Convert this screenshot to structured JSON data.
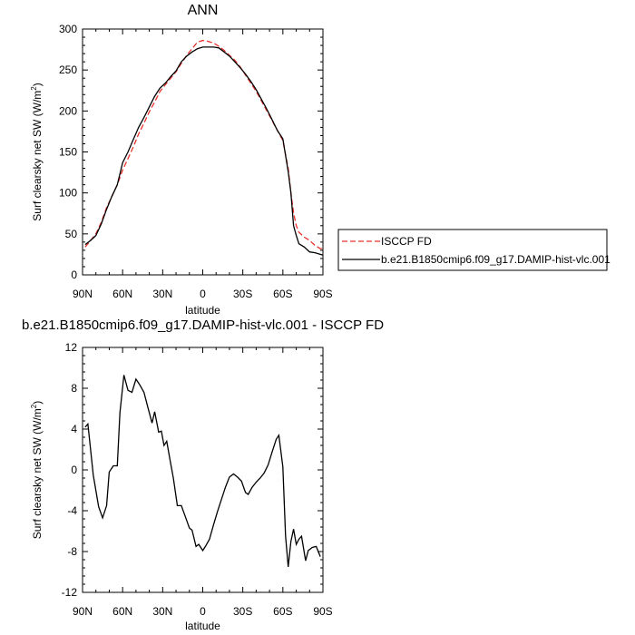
{
  "chart_data": [
    {
      "type": "line",
      "title": "ANN",
      "xlabel": "latitude",
      "ylabel": "Surf clearsky net SW (W/m",
      "ylabel_sup": "2",
      "ylabel_end": ")",
      "xlim": [
        90,
        -90
      ],
      "ylim": [
        0,
        300
      ],
      "x_ticks": [
        90,
        60,
        30,
        0,
        -30,
        -60,
        -90
      ],
      "x_tick_labels": [
        "90N",
        "60N",
        "30N",
        "0",
        "30S",
        "60S",
        "90S"
      ],
      "y_ticks": [
        0,
        50,
        100,
        150,
        200,
        250,
        300
      ],
      "y_tick_labels": [
        "0",
        "50",
        "100",
        "150",
        "200",
        "250",
        "300"
      ],
      "legend_position": "right",
      "series": [
        {
          "name": "ISCCP FD",
          "color": "#e8322b",
          "dash": "dashed",
          "points": [
            [
              88,
              34
            ],
            [
              84,
              42
            ],
            [
              80,
              50
            ],
            [
              76,
              64
            ],
            [
              72,
              82
            ],
            [
              68,
              96
            ],
            [
              64,
              110
            ],
            [
              60,
              128
            ],
            [
              56,
              142
            ],
            [
              52,
              156
            ],
            [
              48,
              172
            ],
            [
              44,
              185
            ],
            [
              40,
              199
            ],
            [
              36,
              211
            ],
            [
              32,
              224
            ],
            [
              28,
              232
            ],
            [
              24,
              240
            ],
            [
              20,
              248
            ],
            [
              16,
              258
            ],
            [
              12,
              268
            ],
            [
              8,
              276
            ],
            [
              4,
              284
            ],
            [
              0,
              286
            ],
            [
              -4,
              285
            ],
            [
              -8,
              283
            ],
            [
              -12,
              279
            ],
            [
              -16,
              274
            ],
            [
              -20,
              268
            ],
            [
              -24,
              262
            ],
            [
              -28,
              254
            ],
            [
              -32,
              244
            ],
            [
              -36,
              234
            ],
            [
              -40,
              224
            ],
            [
              -44,
              212
            ],
            [
              -48,
              200
            ],
            [
              -52,
              188
            ],
            [
              -56,
              176
            ],
            [
              -60,
              164
            ],
            [
              -64,
              130
            ],
            [
              -66,
              100
            ],
            [
              -68,
              76
            ],
            [
              -70,
              60
            ],
            [
              -72,
              52
            ],
            [
              -76,
              46
            ],
            [
              -80,
              42
            ],
            [
              -84,
              36
            ],
            [
              -88,
              32
            ],
            [
              -90,
              32
            ]
          ]
        },
        {
          "name": "b.e21.B1850cmip6.f09_g17.DAMIP-hist-vlc.001",
          "color": "#000000",
          "dash": "solid",
          "points": [
            [
              88,
              37
            ],
            [
              84,
              42
            ],
            [
              80,
              48
            ],
            [
              76,
              62
            ],
            [
              72,
              80
            ],
            [
              68,
              96
            ],
            [
              64,
              110
            ],
            [
              60,
              137
            ],
            [
              56,
              150
            ],
            [
              52,
              165
            ],
            [
              48,
              180
            ],
            [
              44,
              192
            ],
            [
              40,
              205
            ],
            [
              36,
              218
            ],
            [
              32,
              228
            ],
            [
              28,
              234
            ],
            [
              24,
              242
            ],
            [
              20,
              249
            ],
            [
              16,
              260
            ],
            [
              12,
              267
            ],
            [
              8,
              272
            ],
            [
              4,
              276
            ],
            [
              0,
              278
            ],
            [
              -4,
              278
            ],
            [
              -8,
              278
            ],
            [
              -12,
              277
            ],
            [
              -16,
              272
            ],
            [
              -20,
              267
            ],
            [
              -24,
              260
            ],
            [
              -28,
              253
            ],
            [
              -32,
              245
            ],
            [
              -36,
              236
            ],
            [
              -40,
              226
            ],
            [
              -44,
              214
            ],
            [
              -48,
              202
            ],
            [
              -52,
              189
            ],
            [
              -56,
              176
            ],
            [
              -60,
              166
            ],
            [
              -64,
              126
            ],
            [
              -66,
              100
            ],
            [
              -68,
              60
            ],
            [
              -70,
              48
            ],
            [
              -72,
              38
            ],
            [
              -76,
              34
            ],
            [
              -80,
              28
            ],
            [
              -84,
              27
            ],
            [
              -88,
              25
            ],
            [
              -90,
              24
            ]
          ]
        }
      ]
    },
    {
      "type": "line",
      "title": "b.e21.B1850cmip6.f09_g17.DAMIP-hist-vlc.001 - ISCCP FD",
      "xlabel": "latitude",
      "ylabel": "Surf clearsky net SW (W/m",
      "ylabel_sup": "2",
      "ylabel_end": ")",
      "xlim": [
        90,
        -90
      ],
      "ylim": [
        -12,
        12
      ],
      "x_ticks": [
        90,
        60,
        30,
        0,
        -30,
        -60,
        -90
      ],
      "x_tick_labels": [
        "90N",
        "60N",
        "30N",
        "0",
        "30S",
        "60S",
        "90S"
      ],
      "y_ticks": [
        -12,
        -8,
        -4,
        0,
        4,
        8,
        12
      ],
      "y_tick_labels": [
        "-12",
        "-8",
        "-4",
        "0",
        "4",
        "8",
        "12"
      ],
      "series": [
        {
          "color": "#000000",
          "dash": "solid",
          "points": [
            [
              88,
              4.2
            ],
            [
              86,
              4.5
            ],
            [
              82,
              -0.5
            ],
            [
              78,
              -3.6
            ],
            [
              75,
              -4.7
            ],
            [
              72,
              -3.5
            ],
            [
              70,
              -0.2
            ],
            [
              67,
              0.4
            ],
            [
              64,
              0.4
            ],
            [
              62,
              5.6
            ],
            [
              59,
              9.3
            ],
            [
              56,
              7.8
            ],
            [
              53,
              7.6
            ],
            [
              50,
              8.9
            ],
            [
              47,
              8.3
            ],
            [
              44,
              7.6
            ],
            [
              41,
              6.1
            ],
            [
              38,
              4.6
            ],
            [
              36,
              5.7
            ],
            [
              33,
              3.7
            ],
            [
              31,
              3.8
            ],
            [
              29,
              2.4
            ],
            [
              27,
              2.8
            ],
            [
              24,
              0.6
            ],
            [
              22,
              -0.8
            ],
            [
              19,
              -3.5
            ],
            [
              16,
              -3.5
            ],
            [
              13,
              -4.6
            ],
            [
              10,
              -5.7
            ],
            [
              8,
              -5.9
            ],
            [
              5,
              -7.5
            ],
            [
              3,
              -7.3
            ],
            [
              0,
              -7.9
            ],
            [
              -2,
              -7.5
            ],
            [
              -5,
              -6.8
            ],
            [
              -8,
              -5.4
            ],
            [
              -11,
              -4.1
            ],
            [
              -14,
              -2.9
            ],
            [
              -17,
              -1.7
            ],
            [
              -20,
              -0.7
            ],
            [
              -23,
              -0.4
            ],
            [
              -26,
              -0.7
            ],
            [
              -29,
              -1.1
            ],
            [
              -32,
              -2.2
            ],
            [
              -34,
              -2.4
            ],
            [
              -37,
              -1.7
            ],
            [
              -40,
              -1.2
            ],
            [
              -43,
              -0.8
            ],
            [
              -46,
              -0.3
            ],
            [
              -49,
              0.5
            ],
            [
              -52,
              1.8
            ],
            [
              -55,
              3.0
            ],
            [
              -57,
              3.4
            ],
            [
              -60,
              0.3
            ],
            [
              -62,
              -6.5
            ],
            [
              -64,
              -9.5
            ],
            [
              -66,
              -7.0
            ],
            [
              -68,
              -5.8
            ],
            [
              -70,
              -7.3
            ],
            [
              -72,
              -6.8
            ],
            [
              -74,
              -6.5
            ],
            [
              -77,
              -8.9
            ],
            [
              -79,
              -7.9
            ],
            [
              -82,
              -7.6
            ],
            [
              -85,
              -7.5
            ],
            [
              -88,
              -8.5
            ]
          ]
        }
      ]
    }
  ]
}
